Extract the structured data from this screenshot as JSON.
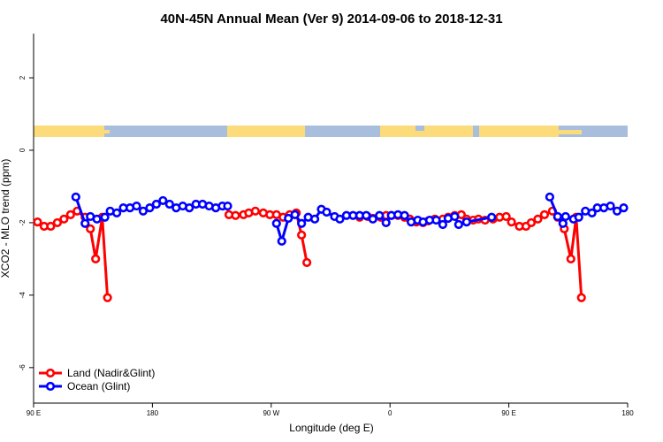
{
  "chart_data": {
    "type": "line",
    "title": "40N-45N Annual Mean (Ver 9)   2014-09-06 to 2018-12-31",
    "x_label": "Longitude (deg E)",
    "y_label": "XCO2 - MLO trend (ppm)",
    "xlim": [
      90,
      540
    ],
    "ylim": [
      -6.98,
      3.22
    ],
    "xticks": [
      {
        "value": 90,
        "label": "90 E"
      },
      {
        "value": 180,
        "label": "180"
      },
      {
        "value": 270,
        "label": "90 W"
      },
      {
        "value": 360,
        "label": "0"
      },
      {
        "value": 450,
        "label": "90 E"
      },
      {
        "value": 540,
        "label": "180"
      }
    ],
    "yticks": [
      -6,
      -4,
      -2,
      0,
      2
    ],
    "legend": "bottom-left",
    "series": [
      {
        "name": "Land (Nadir&Glint)",
        "color": "#ff0000",
        "x": [
          93,
          98,
          103,
          108,
          113,
          118,
          123,
          129,
          133,
          137,
          142,
          146,
          200,
          238,
          243,
          249,
          253,
          258,
          264,
          269,
          274,
          279,
          284,
          289,
          293,
          297,
          330,
          337,
          343,
          347,
          353,
          357,
          361,
          366,
          371,
          375,
          380,
          385,
          389,
          394,
          400,
          404,
          409,
          414,
          418,
          423,
          427,
          432,
          438,
          443,
          448,
          452,
          458,
          463,
          467,
          472,
          477,
          483,
          487,
          492,
          497,
          501,
          505
        ],
        "values": [
          -1.98,
          -2.1,
          -2.1,
          -2.0,
          -1.9,
          -1.78,
          -1.68,
          -1.85,
          -2.17,
          -3.0,
          -1.85,
          -4.07,
          null,
          -1.78,
          -1.8,
          -1.78,
          -1.73,
          -1.68,
          -1.73,
          -1.78,
          -1.78,
          -1.85,
          -1.78,
          -1.73,
          -2.34,
          -3.1,
          null,
          -1.85,
          -1.83,
          -1.88,
          -1.85,
          -1.8,
          -1.8,
          -1.8,
          -1.85,
          -1.9,
          -1.98,
          -2.0,
          -1.95,
          -1.9,
          -1.9,
          -1.85,
          -1.8,
          -1.78,
          -1.9,
          -1.93,
          -1.9,
          -1.93,
          -1.9,
          -1.85,
          -1.83,
          -1.98,
          -2.1,
          -2.1,
          -2.0,
          -1.9,
          -1.78,
          -1.68,
          -1.85,
          -2.17,
          -3.0,
          -1.85,
          -4.07
        ]
      },
      {
        "name": "Ocean (Glint)",
        "color": "#0000ff",
        "x": [
          122,
          129,
          133,
          138,
          144,
          148,
          153,
          158,
          163,
          168,
          173,
          178,
          183,
          188,
          193,
          198,
          203,
          208,
          213,
          218,
          223,
          228,
          233,
          237,
          255,
          274,
          278,
          283,
          288,
          293,
          298,
          303,
          308,
          312,
          318,
          322,
          327,
          332,
          337,
          342,
          347,
          352,
          357,
          361,
          366,
          371,
          376,
          381,
          385,
          390,
          395,
          400,
          404,
          409,
          412,
          418,
          437,
          460,
          481,
          487,
          491,
          493,
          499,
          503,
          508,
          513,
          517,
          522,
          527,
          532,
          537
        ],
        "values": [
          -1.29,
          -2.02,
          -1.83,
          -1.9,
          -1.85,
          -1.68,
          -1.73,
          -1.59,
          -1.59,
          -1.54,
          -1.68,
          -1.59,
          -1.49,
          -1.39,
          -1.49,
          -1.59,
          -1.54,
          -1.59,
          -1.49,
          -1.49,
          -1.54,
          -1.59,
          -1.54,
          -1.54,
          null,
          -2.02,
          -2.51,
          -1.88,
          -1.78,
          -2.02,
          -1.85,
          -1.9,
          -1.63,
          -1.71,
          -1.83,
          -1.9,
          -1.8,
          -1.8,
          -1.8,
          -1.8,
          -1.9,
          -1.8,
          -2.0,
          -1.8,
          -1.78,
          -1.8,
          -1.98,
          -1.93,
          -1.98,
          -1.93,
          -1.93,
          -2.05,
          -1.88,
          -1.83,
          -2.05,
          -1.98,
          -1.85,
          null,
          -1.29,
          -1.83,
          -2.02,
          -1.83,
          -1.9,
          -1.85,
          -1.68,
          -1.73,
          -1.59,
          -1.59,
          -1.54,
          -1.68,
          -1.59
        ]
      }
    ]
  }
}
